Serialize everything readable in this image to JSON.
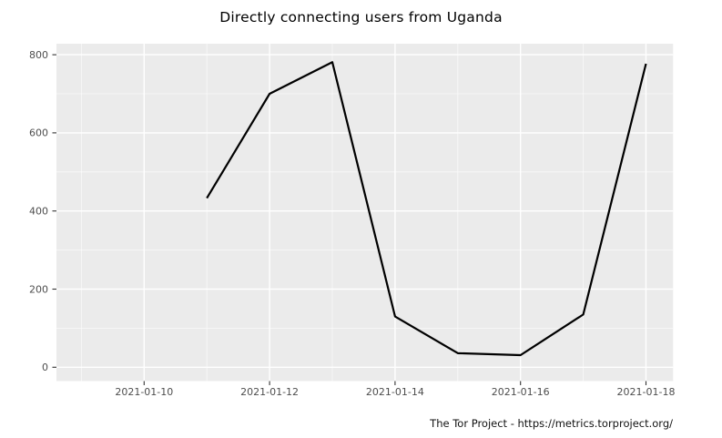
{
  "page": {
    "footer": "The Tor Project - https://metrics.torproject.org/"
  },
  "colors": {
    "panel_background": "#ebebeb",
    "grid_major": "#ffffff",
    "grid_minor": "#f5f5f5",
    "line": "#000000",
    "tick_text": "#4d4d4d",
    "tick_mark": "#333333",
    "title_text": "#000000"
  },
  "chart_data": {
    "type": "line",
    "title": "Directly connecting users from Uganda",
    "xlabel": "",
    "ylabel": "",
    "x": [
      "2021-01-11",
      "2021-01-12",
      "2021-01-13",
      "2021-01-14",
      "2021-01-15",
      "2021-01-16",
      "2021-01-17",
      "2021-01-18"
    ],
    "values": [
      433,
      700,
      781,
      130,
      36,
      31,
      135,
      777
    ],
    "x_ticks": [
      "2021-01-10",
      "2021-01-12",
      "2021-01-14",
      "2021-01-16",
      "2021-01-18"
    ],
    "x_grid_start": "2021-01-09",
    "x_grid_end": "2021-01-18",
    "y_ticks": [
      0,
      200,
      400,
      600,
      800
    ],
    "ylim": [
      0,
      800
    ],
    "grid": "major and minor, white on gray panel",
    "legend": false
  }
}
